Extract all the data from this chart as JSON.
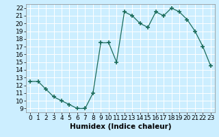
{
  "x": [
    0,
    1,
    2,
    3,
    4,
    5,
    6,
    7,
    8,
    9,
    10,
    11,
    12,
    13,
    14,
    15,
    16,
    17,
    18,
    19,
    20,
    21,
    22,
    23
  ],
  "y": [
    12.5,
    12.5,
    11.5,
    10.5,
    10.0,
    9.5,
    9.0,
    9.0,
    11.0,
    17.5,
    17.5,
    15.0,
    21.5,
    21.0,
    20.0,
    19.5,
    21.5,
    21.0,
    22.0,
    21.5,
    20.5,
    19.0,
    17.0,
    14.5
  ],
  "line_color": "#1a6b5a",
  "marker": "+",
  "bg_color": "#cceeff",
  "grid_color": "#ffffff",
  "xlabel": "Humidex (Indice chaleur)",
  "xlim": [
    -0.5,
    23.5
  ],
  "ylim": [
    8.5,
    22.5
  ],
  "yticks": [
    9,
    10,
    11,
    12,
    13,
    14,
    15,
    16,
    17,
    18,
    19,
    20,
    21,
    22
  ],
  "xticks": [
    0,
    1,
    2,
    3,
    4,
    5,
    6,
    7,
    8,
    9,
    10,
    11,
    12,
    13,
    14,
    15,
    16,
    17,
    18,
    19,
    20,
    21,
    22,
    23
  ],
  "tick_fontsize": 6.5,
  "label_fontsize": 7.5
}
